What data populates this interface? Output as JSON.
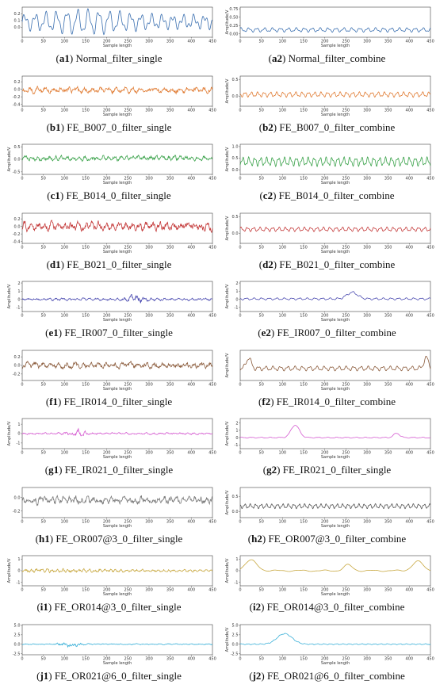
{
  "chart_data": [
    {
      "id": "a1",
      "type": "line",
      "color": "#3a6fb0",
      "ylim": [
        -0.15,
        0.3
      ],
      "yticks": [
        "0.2",
        "0.1",
        "0.0"
      ],
      "xticks": [
        "0",
        "50",
        "100",
        "150",
        "200",
        "250",
        "300",
        "350",
        "400",
        "450"
      ],
      "xlabel": "Sample length",
      "ylabel": "",
      "x": [
        0,
        450
      ],
      "y_description": "oscillating signal",
      "series": [
        {
          "shape": "wave",
          "amp": 0.12,
          "mid": 0.08,
          "freq": 18,
          "env": "lowmid"
        }
      ],
      "caption_label": "a",
      "caption_num": "1",
      "caption_text": " Normal_filter_single"
    },
    {
      "id": "a2",
      "type": "line",
      "color": "#3a6fb0",
      "ylim": [
        -0.1,
        0.8
      ],
      "yticks": [
        "0.75",
        "0.50",
        "0.25",
        "0.00"
      ],
      "xticks": [
        "0",
        "50",
        "100",
        "150",
        "200",
        "250",
        "300",
        "350",
        "400",
        "450"
      ],
      "xlabel": "Sample length",
      "ylabel": "Amplitude/V",
      "series": [
        {
          "shape": "wave",
          "amp": 0.05,
          "mid": 0.12,
          "freq": 24,
          "env": "flat"
        }
      ],
      "caption_label": "a",
      "caption_num": "2",
      "caption_text": " Normal_filter_combine"
    },
    {
      "id": "b1",
      "type": "line",
      "color": "#e07b32",
      "ylim": [
        -0.45,
        0.35
      ],
      "yticks": [
        "0.2",
        "0.0",
        "-0.2",
        "-0.4"
      ],
      "xticks": [
        "0",
        "50",
        "100",
        "150",
        "200",
        "250",
        "300",
        "350",
        "400",
        "450"
      ],
      "xlabel": "Sample length",
      "ylabel": "",
      "series": [
        {
          "shape": "noise",
          "amp": 0.08,
          "mid": -0.02,
          "freq": 60,
          "env": "flat"
        }
      ],
      "caption_label": "b",
      "caption_num": "1",
      "caption_text": " FE_B007_0_filter_single"
    },
    {
      "id": "b2",
      "type": "line",
      "color": "#e07b32",
      "ylim": [
        -0.3,
        0.6
      ],
      "yticks": [
        "0.5",
        "0.0"
      ],
      "xticks": [
        "0",
        "50",
        "100",
        "150",
        "200",
        "250",
        "300",
        "350",
        "400",
        "450"
      ],
      "xlabel": "Sample length",
      "ylabel": "Amplitude/V",
      "series": [
        {
          "shape": "wave",
          "amp": 0.06,
          "mid": 0.05,
          "freq": 30,
          "env": "flat"
        }
      ],
      "caption_label": "b",
      "caption_num": "2",
      "caption_text": " FE_B007_0_filter_combine"
    },
    {
      "id": "c1",
      "type": "line",
      "color": "#3aa24a",
      "ylim": [
        -0.6,
        0.6
      ],
      "yticks": [
        "0.5",
        "0.0",
        "-0.5"
      ],
      "xticks": [
        "0",
        "50",
        "100",
        "150",
        "200",
        "250",
        "300",
        "350",
        "400",
        "450"
      ],
      "xlabel": "Sample length",
      "ylabel": "Amplitude/V",
      "series": [
        {
          "shape": "noise",
          "amp": 0.1,
          "mid": 0.05,
          "freq": 80,
          "env": "flat"
        }
      ],
      "caption_label": "c",
      "caption_num": "1",
      "caption_text": " FE_B014_0_filter_single"
    },
    {
      "id": "c2",
      "type": "line",
      "color": "#3aa24a",
      "ylim": [
        -0.2,
        1.1
      ],
      "yticks": [
        "1.0",
        "0.5",
        "0.0"
      ],
      "xticks": [
        "0",
        "50",
        "100",
        "150",
        "200",
        "250",
        "300",
        "350",
        "400",
        "450"
      ],
      "xlabel": "Sample length",
      "ylabel": "Amplitude/V",
      "series": [
        {
          "shape": "wave",
          "amp": 0.15,
          "mid": 0.35,
          "freq": 32,
          "env": "flat"
        }
      ],
      "caption_label": "c",
      "caption_num": "2",
      "caption_text": " FE_B014_0_filter_combine"
    },
    {
      "id": "d1",
      "type": "line",
      "color": "#c43a3a",
      "ylim": [
        -0.45,
        0.35
      ],
      "yticks": [
        "0.2",
        "0.0",
        "-0.2",
        "-0.4"
      ],
      "xticks": [
        "0",
        "50",
        "100",
        "150",
        "200",
        "250",
        "300",
        "350",
        "400",
        "450"
      ],
      "xlabel": "Sample length",
      "ylabel": "",
      "series": [
        {
          "shape": "noise",
          "amp": 0.12,
          "mid": 0.0,
          "freq": 70,
          "env": "flat"
        }
      ],
      "caption_label": "d",
      "caption_num": "1",
      "caption_text": " FE_B021_0_filter_single"
    },
    {
      "id": "d2",
      "type": "line",
      "color": "#c43a3a",
      "ylim": [
        -0.3,
        0.6
      ],
      "yticks": [
        "0.5",
        "0.0"
      ],
      "xticks": [
        "0",
        "50",
        "100",
        "150",
        "200",
        "250",
        "300",
        "350",
        "400",
        "450"
      ],
      "xlabel": "Sample length",
      "ylabel": "Amplitude/V",
      "series": [
        {
          "shape": "wave",
          "amp": 0.05,
          "mid": 0.12,
          "freq": 30,
          "env": "flat"
        }
      ],
      "caption_label": "d",
      "caption_num": "2",
      "caption_text": " FE_B021_0_filter_combine"
    },
    {
      "id": "e1",
      "type": "line",
      "color": "#4a4ab0",
      "ylim": [
        -1.5,
        2.2
      ],
      "yticks": [
        "2",
        "1",
        "0",
        "-1"
      ],
      "xticks": [
        "0",
        "50",
        "100",
        "150",
        "200",
        "250",
        "300",
        "350",
        "400",
        "450"
      ],
      "xlabel": "Sample length",
      "ylabel": "Amplitude/V",
      "series": [
        {
          "shape": "noise",
          "amp": 0.15,
          "mid": 0.0,
          "freq": 70,
          "env": "bump270"
        }
      ],
      "caption_label": "e",
      "caption_num": "1",
      "caption_text": " FE_IR007_0_filter_single"
    },
    {
      "id": "e2",
      "type": "line",
      "color": "#4a4ab0",
      "ylim": [
        -1.5,
        2.2
      ],
      "yticks": [
        "2",
        "1",
        "0",
        "-1"
      ],
      "xticks": [
        "0",
        "50",
        "100",
        "150",
        "200",
        "250",
        "300",
        "350",
        "400",
        "450"
      ],
      "xlabel": "Sample length",
      "ylabel": "Amplitude/V",
      "series": [
        {
          "shape": "wave",
          "amp": 0.1,
          "mid": 0.05,
          "freq": 25,
          "env": "hump260"
        }
      ],
      "caption_label": "e",
      "caption_num": "2",
      "caption_text": " FE_IR007_0_filter_combine"
    },
    {
      "id": "f1",
      "type": "line",
      "color": "#8a5a3a",
      "ylim": [
        -0.35,
        0.35
      ],
      "yticks": [
        "0.2",
        "0.0",
        "-0.2"
      ],
      "xticks": [
        "0",
        "50",
        "100",
        "150",
        "200",
        "250",
        "300",
        "350",
        "400",
        "450"
      ],
      "xlabel": "Sample length",
      "ylabel": "",
      "series": [
        {
          "shape": "noise",
          "amp": 0.07,
          "mid": 0.0,
          "freq": 60,
          "env": "flat"
        }
      ],
      "caption_label": "f",
      "caption_num": "1",
      "caption_text": " FE_IR014_0_filter_single"
    },
    {
      "id": "f2",
      "type": "line",
      "color": "#8a5a3a",
      "ylim": [
        -0.4,
        0.6
      ],
      "yticks": [],
      "xticks": [
        "0",
        "50",
        "100",
        "150",
        "200",
        "250",
        "300",
        "350",
        "400",
        "450"
      ],
      "xlabel": "Sample length",
      "ylabel": "Amplitude/V",
      "series": [
        {
          "shape": "wave",
          "amp": 0.06,
          "mid": 0.0,
          "freq": 26,
          "env": "ends"
        }
      ],
      "caption_label": "f",
      "caption_num": "2",
      "caption_text": " FE_IR014_0_filter_combine"
    },
    {
      "id": "g1",
      "type": "line",
      "color": "#d45ad0",
      "ylim": [
        -1.6,
        1.6
      ],
      "yticks": [
        "1",
        "0",
        "-1"
      ],
      "xticks": [
        "0",
        "50",
        "100",
        "150",
        "200",
        "250",
        "300",
        "350",
        "400",
        "450"
      ],
      "xlabel": "Sample length",
      "ylabel": "Amplitude/V",
      "series": [
        {
          "shape": "noise",
          "amp": 0.1,
          "mid": 0.0,
          "freq": 70,
          "env": "burst130"
        }
      ],
      "caption_label": "g",
      "caption_num": "1",
      "caption_text": " FE_IR021_0_filter_single"
    },
    {
      "id": "g2",
      "type": "line",
      "color": "#d45ad0",
      "ylim": [
        -1.5,
        2.6
      ],
      "yticks": [
        "2",
        "1",
        "0",
        "-1"
      ],
      "xticks": [
        "0",
        "50",
        "100",
        "150",
        "200",
        "250",
        "300",
        "350",
        "400",
        "450"
      ],
      "xlabel": "Sample length",
      "ylabel": "Amplitude/V",
      "series": [
        {
          "shape": "wave",
          "amp": 0.05,
          "mid": 0.0,
          "freq": 20,
          "env": "hump130"
        }
      ],
      "caption_label": "g",
      "caption_num": "2",
      "caption_text": " FE_IR021_0_filter_single"
    },
    {
      "id": "h1",
      "type": "line",
      "color": "#7a7a7a",
      "ylim": [
        -0.3,
        0.15
      ],
      "yticks": [
        "0.0",
        "-0.2"
      ],
      "xticks": [
        "0",
        "50",
        "100",
        "150",
        "200",
        "250",
        "300",
        "350",
        "400",
        "450"
      ],
      "xlabel": "Sample length",
      "ylabel": "",
      "series": [
        {
          "shape": "noise",
          "amp": 0.06,
          "mid": -0.04,
          "freq": 80,
          "env": "flat"
        }
      ],
      "caption_label": "h",
      "caption_num": "1",
      "caption_text": " FE_OR007@3_0_filter_single"
    },
    {
      "id": "h2",
      "type": "line",
      "color": "#555555",
      "ylim": [
        -0.2,
        0.8
      ],
      "yticks": [
        "0.5",
        "0.0"
      ],
      "xticks": [
        "0",
        "50",
        "100",
        "150",
        "200",
        "250",
        "300",
        "350",
        "400",
        "450"
      ],
      "xlabel": "Sample length",
      "ylabel": "Amplitude/V",
      "series": [
        {
          "shape": "wave",
          "amp": 0.06,
          "mid": 0.18,
          "freq": 35,
          "env": "flat"
        }
      ],
      "caption_label": "h",
      "caption_num": "2",
      "caption_text": " FE_OR007@3_0_filter_combine"
    },
    {
      "id": "i1",
      "type": "line",
      "color": "#c8a840",
      "ylim": [
        -1.3,
        1.3
      ],
      "yticks": [
        "1",
        "0",
        "-1"
      ],
      "xticks": [
        "0",
        "50",
        "100",
        "150",
        "200",
        "250",
        "300",
        "350",
        "400",
        "450"
      ],
      "xlabel": "Sample length",
      "ylabel": "Amplitude/V",
      "series": [
        {
          "shape": "noise",
          "amp": 0.12,
          "mid": 0.0,
          "freq": 90,
          "env": "decay"
        }
      ],
      "caption_label": "i",
      "caption_num": "1",
      "caption_text": " FE_OR014@3_0_filter_single"
    },
    {
      "id": "i2",
      "type": "line",
      "color": "#c8a840",
      "ylim": [
        -1.3,
        1.3
      ],
      "yticks": [
        "1",
        "0",
        "-1"
      ],
      "xticks": [
        "0",
        "50",
        "100",
        "150",
        "200",
        "250",
        "300",
        "350",
        "400",
        "450"
      ],
      "xlabel": "Sample length",
      "ylabel": "Amplitude/V",
      "series": [
        {
          "shape": "wave",
          "amp": 0.05,
          "mid": 0.0,
          "freq": 8,
          "env": "humps_i2"
        }
      ],
      "caption_label": "i",
      "caption_num": "2",
      "caption_text": " FE_OR014@3_0_filter_combine"
    },
    {
      "id": "j1",
      "type": "line",
      "color": "#3ab0d8",
      "ylim": [
        -2.8,
        5.2
      ],
      "yticks": [
        "5.0",
        "2.5",
        "0.0",
        "-2.5"
      ],
      "xticks": [
        "0",
        "50",
        "100",
        "150",
        "200",
        "250",
        "300",
        "350",
        "400",
        "450"
      ],
      "xlabel": "Sample length",
      "ylabel": "",
      "series": [
        {
          "shape": "noise",
          "amp": 0.15,
          "mid": 0.0,
          "freq": 60,
          "env": "burst110"
        }
      ],
      "caption_label": "j",
      "caption_num": "1",
      "caption_text": " FE_OR021@6_0_filter_single"
    },
    {
      "id": "j2",
      "type": "line",
      "color": "#3ab0d8",
      "ylim": [
        -2.8,
        5.2
      ],
      "yticks": [
        "5.0",
        "2.5",
        "0.0",
        "-2.5"
      ],
      "xticks": [
        "0",
        "50",
        "100",
        "150",
        "200",
        "250",
        "300",
        "350",
        "400",
        "450"
      ],
      "xlabel": "Sample length",
      "ylabel": "Amplitude/V",
      "series": [
        {
          "shape": "wave",
          "amp": 0.1,
          "mid": 0.0,
          "freq": 30,
          "env": "hump110"
        }
      ],
      "caption_label": "j",
      "caption_num": "2",
      "caption_text": " FE_OR021@6_0_filter_combine"
    }
  ]
}
